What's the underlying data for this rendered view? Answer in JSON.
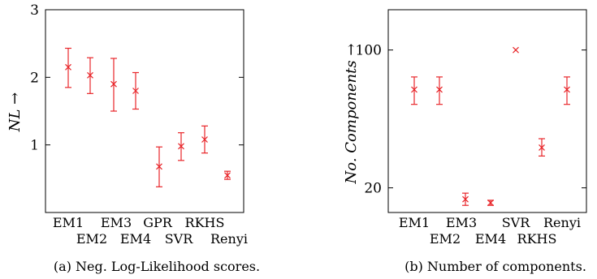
{
  "chart_data": [
    {
      "type": "scatter",
      "subtype": "error-bar",
      "caption": "(a) Neg. Log-Likelihood scores.",
      "ylabel": "NL →",
      "ylim": [
        0,
        3
      ],
      "yticks": [
        "1",
        "2",
        "3"
      ],
      "grid": false,
      "categories": [
        "EM1",
        "EM2",
        "EM3",
        "EM4",
        "GPR",
        "SVR",
        "RKHS",
        "Renyi"
      ],
      "values": [
        2.15,
        2.03,
        1.9,
        1.8,
        0.68,
        0.98,
        1.08,
        0.55
      ],
      "error_low": [
        1.85,
        1.76,
        1.5,
        1.53,
        0.38,
        0.77,
        0.88,
        0.49
      ],
      "error_high": [
        2.43,
        2.29,
        2.28,
        2.07,
        0.97,
        1.18,
        1.28,
        0.61
      ],
      "marker_color": "#e8262a"
    },
    {
      "type": "scatter",
      "subtype": "error-bar",
      "caption": "(b) Number of components.",
      "ylabel": "No. Components →",
      "yscale": "log",
      "ylim": [
        15,
        160
      ],
      "yticks": [
        "20",
        "100"
      ],
      "grid": false,
      "categories": [
        "EM1",
        "EM2",
        "EM3",
        "EM4",
        "SVR",
        "RKHS",
        "Renyi"
      ],
      "values": [
        63,
        63,
        17.5,
        16.8,
        100,
        32,
        63
      ],
      "error_low": [
        53,
        53,
        16.3,
        16.3,
        100,
        29,
        53
      ],
      "error_high": [
        73,
        73,
        18.8,
        17.3,
        100,
        35.5,
        73
      ],
      "marker_color": "#e8262a"
    }
  ]
}
